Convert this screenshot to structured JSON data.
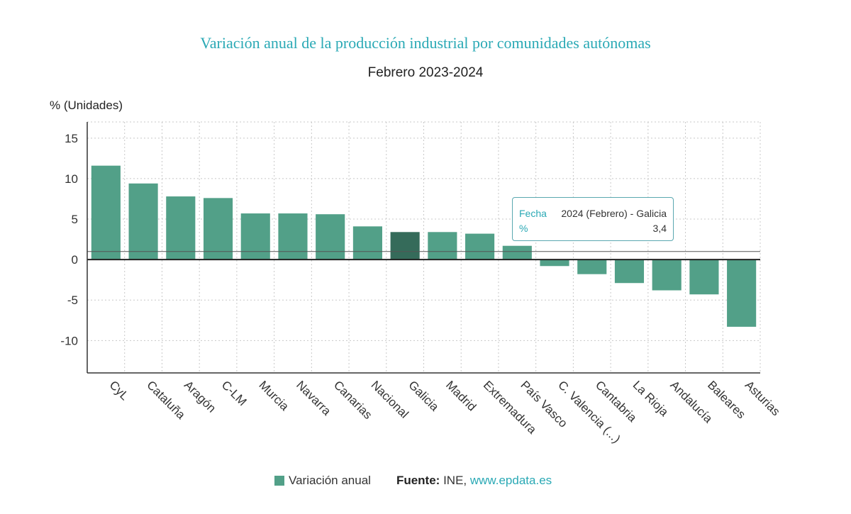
{
  "chart_data": {
    "type": "bar",
    "title": "Variación anual de la producción industrial por comunidades autónomas",
    "subtitle": "Febrero 2023-2024",
    "ylabel": "% (Unidades)",
    "xlabel": "",
    "ylim": [
      -14,
      17
    ],
    "yticks": [
      15,
      10,
      5,
      0,
      -5,
      -10
    ],
    "ytick_labels": [
      "15",
      "10",
      "5",
      "0",
      "-5",
      "-10"
    ],
    "reference_line": 1,
    "categories": [
      "CyL",
      "Cataluña",
      "Aragón",
      "C-LM",
      "Murcia",
      "Navarra",
      "Canarias",
      "Nacional",
      "Galicia",
      "Madrid",
      "Extremadura",
      "País Vasco",
      "C. Valencia (...)",
      "Cantabria",
      "La Rioja",
      "Andalucía",
      "Baleares",
      "Asturias"
    ],
    "series": [
      {
        "name": "Variación anual",
        "values": [
          11.6,
          9.4,
          7.8,
          7.6,
          5.7,
          5.7,
          5.6,
          4.1,
          3.4,
          3.4,
          3.2,
          1.7,
          -0.8,
          -1.8,
          -2.9,
          -3.8,
          -4.3,
          -8.3
        ]
      }
    ],
    "highlighted": "Galicia",
    "legend_position": "bottom"
  },
  "colors": {
    "title": "#2aa9b5",
    "bar": "#52a088",
    "bar_highlight": "#356b5a",
    "grid": "#c8c8c8",
    "axis": "#333333"
  },
  "tooltip": {
    "k1": "Fecha",
    "v1": "2024 (Febrero) - Galicia",
    "k2": "%",
    "v2": "3,4"
  },
  "legend": {
    "label": "Variación anual"
  },
  "source": {
    "prefix": "Fuente:",
    "org": "INE,",
    "link": "www.epdata.es"
  }
}
